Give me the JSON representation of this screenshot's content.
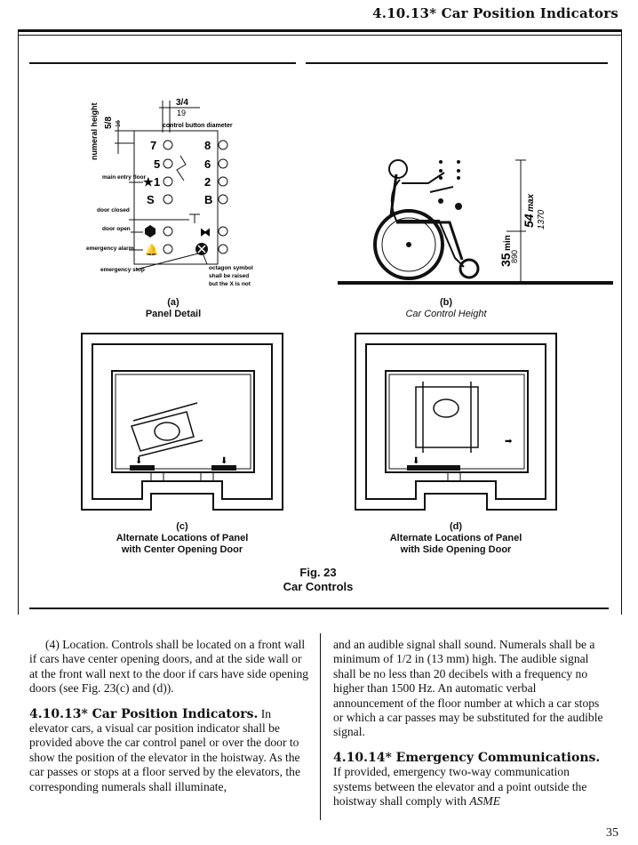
{
  "running_head": "4.10.13* Car Position Indicators",
  "figure": {
    "panel_detail": {
      "numeral_height_label": "numeral height",
      "numeral_height_in": "5/8",
      "numeral_height_mm": "16",
      "button_diameter_in": "3/4",
      "button_diameter_mm": "19",
      "button_diameter_label": "control button diameter",
      "buttons": [
        "7",
        "8",
        "5",
        "6",
        "1",
        "2",
        "S",
        "B"
      ],
      "labels": {
        "main_entry": "main entry floor",
        "door_closed": "door closed",
        "door_open": "door open",
        "emergency_alarm": "emergency alarm",
        "emergency_stop": "emergency stop",
        "octagon_note_1": "octagon symbol",
        "octagon_note_2": "shall be raised",
        "octagon_note_3": "but the X is not"
      }
    },
    "height_detail": {
      "dim_35": "35",
      "dim_min": "min",
      "dim_890": "890",
      "dim_54": "54",
      "dim_max": "max",
      "dim_1370": "1370"
    },
    "captions": {
      "a_letter": "(a)",
      "a_text": "Panel Detail",
      "b_letter": "(b)",
      "b_text": "Car Control Height",
      "c_letter": "(c)",
      "c_line1": "Alternate Locations of Panel",
      "c_line2": "with Center Opening Door",
      "d_letter": "(d)",
      "d_line1": "Alternate Locations of Panel",
      "d_line2": "with Side Opening Door"
    },
    "fig_number": "Fig. 23",
    "fig_title": "Car Controls"
  },
  "text": {
    "left": {
      "p1": "(4) Location. Controls shall be located on a front wall if cars have center opening doors, and at the side wall or at the front wall next to the door if cars have side opening doors (see Fig. 23(c) and (d)).",
      "h2": "4.10.13* Car Position Indicators.",
      "p2": "In elevator cars, a visual car position indicator shall be provided above the car control panel or over the door to show the position of the elevator in the hoistway. As the car passes or stops at a floor served by the elevators, the corresponding numerals shall illuminate,"
    },
    "right": {
      "p1": "and an audible signal shall sound. Numerals shall be a minimum of 1/2 in (13 mm) high. The audible signal shall be no less than 20 decibels with a frequency no higher than 1500 Hz. An automatic verbal announcement of the floor number at which a car stops or which a car passes may be substituted for the audible signal.",
      "h3": "4.10.14* Emergency Communications.",
      "p3a": "If provided, emergency two-way communication systems between the elevator and a point outside the hoistway shall comply with",
      "p3b": "ASME"
    }
  },
  "page_number": "35"
}
